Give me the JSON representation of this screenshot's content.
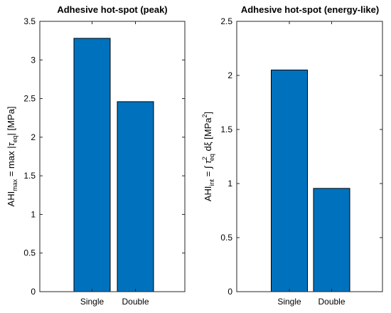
{
  "chart_data": [
    {
      "type": "bar",
      "title": "Adhesive hot-spot (peak)",
      "ylabel": {
        "base1": "AHI",
        "sub1": "max",
        "mid": " = max |",
        "tau": "τ",
        "sub2": "eq",
        "end": "| [MPa]"
      },
      "categories": [
        "Single",
        "Double"
      ],
      "values": [
        3.28,
        2.46
      ],
      "ylim": [
        0,
        3.5
      ],
      "yticks": [
        0,
        0.5,
        1,
        1.5,
        2,
        2.5,
        3,
        3.5
      ],
      "ytick_labels": [
        "0",
        "0.5",
        "1",
        "1.5",
        "2",
        "2.5",
        "3",
        "3.5"
      ],
      "bar_color": "#0072BD",
      "grid": false
    },
    {
      "type": "bar",
      "title": "Adhesive hot-spot (energy-like)",
      "ylabel": {
        "base1": "AHI",
        "sub1": "int",
        "mid": " = ∫ ",
        "tau": "τ",
        "sup": "2",
        "sub2": "eq",
        "mid2": " dξ [MPa",
        "sup2": "2",
        "end": "]"
      },
      "categories": [
        "Single",
        "Double"
      ],
      "values": [
        2.05,
        0.955
      ],
      "ylim": [
        0,
        2.5
      ],
      "yticks": [
        0,
        0.5,
        1,
        1.5,
        2,
        2.5
      ],
      "ytick_labels": [
        "0",
        "0.5",
        "1",
        "1.5",
        "2",
        "2.5"
      ],
      "bar_color": "#0072BD",
      "grid": false
    }
  ]
}
